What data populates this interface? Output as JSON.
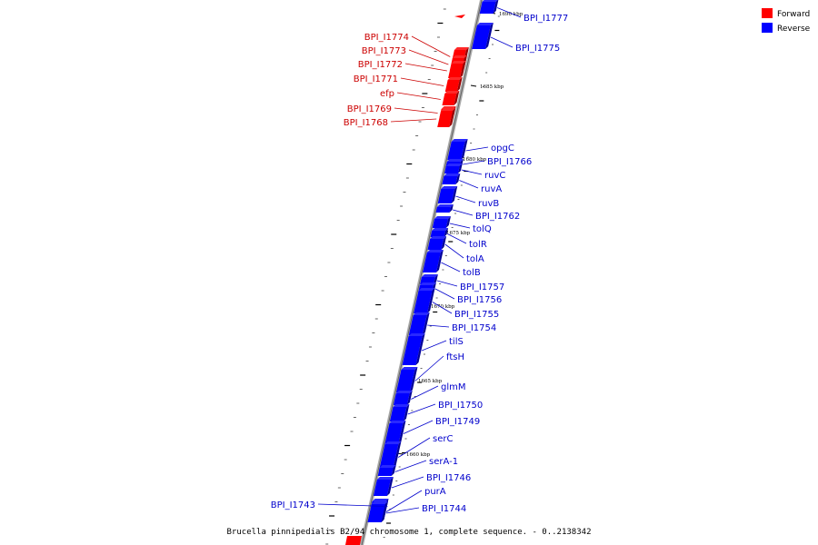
{
  "caption": "Brucella pinnipedialis B2/94 chromosome 1, complete sequence. - 0..2138342",
  "legend": [
    {
      "label": "Forward",
      "color": "#ff0000"
    },
    {
      "label": "Reverse",
      "color": "#0000ff"
    }
  ],
  "colors": {
    "forward": "#ff0000",
    "reverse": "#0000ff",
    "backbone": "#999999"
  },
  "map": {
    "sequence_range": [
      0,
      2138342
    ],
    "tick_labels": [
      "1690 kbp",
      "1685 kbp",
      "1680 kbp",
      "1675 kbp",
      "1670 kbp",
      "1665 kbp",
      "1660 kbp"
    ]
  },
  "features": [
    {
      "name": "BPI_I1777",
      "strand": "reverse"
    },
    {
      "name": "BPI_I1775",
      "strand": "reverse"
    },
    {
      "name": "BPI_I1774",
      "strand": "forward"
    },
    {
      "name": "BPI_I1773",
      "strand": "forward"
    },
    {
      "name": "BPI_I1772",
      "strand": "forward"
    },
    {
      "name": "BPI_I1771",
      "strand": "forward"
    },
    {
      "name": "efp",
      "strand": "forward"
    },
    {
      "name": "BPI_I1769",
      "strand": "forward"
    },
    {
      "name": "BPI_I1768",
      "strand": "forward"
    },
    {
      "name": "opgC",
      "strand": "reverse"
    },
    {
      "name": "BPI_I1766",
      "strand": "reverse"
    },
    {
      "name": "ruvC",
      "strand": "reverse"
    },
    {
      "name": "ruvA",
      "strand": "reverse"
    },
    {
      "name": "ruvB",
      "strand": "reverse"
    },
    {
      "name": "BPI_I1762",
      "strand": "reverse"
    },
    {
      "name": "tolQ",
      "strand": "reverse"
    },
    {
      "name": "tolR",
      "strand": "reverse"
    },
    {
      "name": "tolA",
      "strand": "reverse"
    },
    {
      "name": "tolB",
      "strand": "reverse"
    },
    {
      "name": "BPI_I1757",
      "strand": "reverse"
    },
    {
      "name": "BPI_I1756",
      "strand": "reverse"
    },
    {
      "name": "BPI_I1755",
      "strand": "reverse"
    },
    {
      "name": "BPI_I1754",
      "strand": "reverse"
    },
    {
      "name": "tilS",
      "strand": "reverse"
    },
    {
      "name": "ftsH",
      "strand": "reverse"
    },
    {
      "name": "glmM",
      "strand": "reverse"
    },
    {
      "name": "BPI_I1750",
      "strand": "reverse"
    },
    {
      "name": "BPI_I1749",
      "strand": "reverse"
    },
    {
      "name": "serC",
      "strand": "reverse"
    },
    {
      "name": "serA-1",
      "strand": "reverse"
    },
    {
      "name": "BPI_I1746",
      "strand": "reverse"
    },
    {
      "name": "purA",
      "strand": "reverse"
    },
    {
      "name": "BPI_I1744",
      "strand": "reverse"
    },
    {
      "name": "BPI_I1743",
      "strand": "reverse"
    }
  ]
}
